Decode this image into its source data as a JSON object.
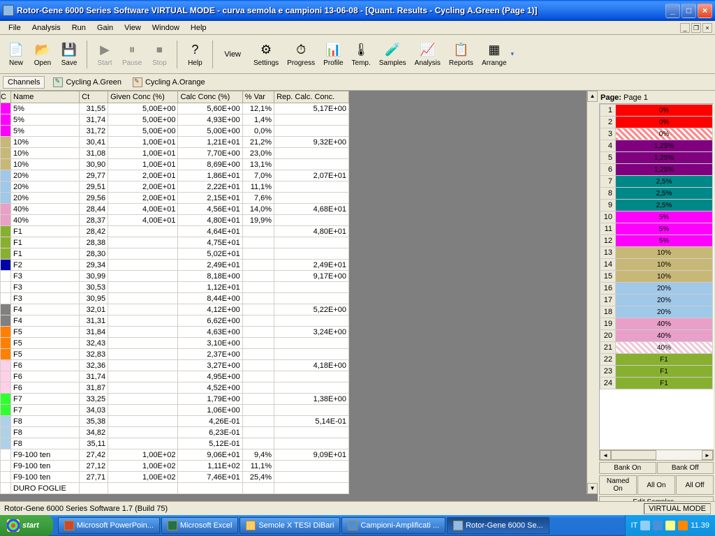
{
  "window": {
    "title": "Rotor-Gene 6000 Series Software VIRTUAL MODE - curva semola e campioni 13-06-08 - [Quant. Results - Cycling A.Green (Page 1)]"
  },
  "menu": {
    "items": [
      "File",
      "Analysis",
      "Run",
      "Gain",
      "View",
      "Window",
      "Help"
    ]
  },
  "toolbar1": [
    {
      "label": "New",
      "glyph": "📄",
      "enabled": true
    },
    {
      "label": "Open",
      "glyph": "📂",
      "enabled": true
    },
    {
      "label": "Save",
      "glyph": "💾",
      "enabled": true
    }
  ],
  "toolbar2": [
    {
      "label": "Start",
      "glyph": "▶",
      "enabled": false
    },
    {
      "label": "Pause",
      "glyph": "⏸",
      "enabled": false
    },
    {
      "label": "Stop",
      "glyph": "⏹",
      "enabled": false
    }
  ],
  "toolbar3": [
    {
      "label": "Help",
      "glyph": "?",
      "enabled": true
    }
  ],
  "viewlabel": "View",
  "toolbar4": [
    {
      "label": "Settings",
      "glyph": "⚙",
      "enabled": true
    },
    {
      "label": "Progress",
      "glyph": "⏱",
      "enabled": true
    },
    {
      "label": "Profile",
      "glyph": "📊",
      "enabled": true
    },
    {
      "label": "Temp.",
      "glyph": "🌡",
      "enabled": true
    },
    {
      "label": "Samples",
      "glyph": "🧪",
      "enabled": true
    },
    {
      "label": "Analysis",
      "glyph": "📈",
      "enabled": true
    },
    {
      "label": "Reports",
      "glyph": "📋",
      "enabled": true
    },
    {
      "label": "Arrange",
      "glyph": "▦",
      "enabled": true
    }
  ],
  "channels": {
    "label": "Channels",
    "items": [
      "Cycling A.Green",
      "Cycling A.Orange"
    ]
  },
  "table": {
    "headers": [
      "C",
      "Name",
      "Ct",
      "Given Conc (%)",
      "Calc Conc (%)",
      "% Var",
      "Rep. Calc. Conc."
    ],
    "rows": [
      {
        "color": "#ff00ff",
        "name": "5%",
        "ct": "31,55",
        "given": "5,00E+00",
        "calc": "5,60E+00",
        "var": "12,1%",
        "rep": "5,17E+00"
      },
      {
        "color": "#ff00ff",
        "name": "5%",
        "ct": "31,74",
        "given": "5,00E+00",
        "calc": "4,93E+00",
        "var": "1,4%",
        "rep": ""
      },
      {
        "color": "#ff00ff",
        "name": "5%",
        "ct": "31,72",
        "given": "5,00E+00",
        "calc": "5,00E+00",
        "var": "0,0%",
        "rep": ""
      },
      {
        "color": "#c8b878",
        "name": "10%",
        "ct": "30,41",
        "given": "1,00E+01",
        "calc": "1,21E+01",
        "var": "21,2%",
        "rep": "9,32E+00"
      },
      {
        "color": "#c8b878",
        "name": "10%",
        "ct": "31,08",
        "given": "1,00E+01",
        "calc": "7,70E+00",
        "var": "23,0%",
        "rep": ""
      },
      {
        "color": "#c8b878",
        "name": "10%",
        "ct": "30,90",
        "given": "1,00E+01",
        "calc": "8,69E+00",
        "var": "13,1%",
        "rep": ""
      },
      {
        "color": "#a0c8e8",
        "name": "20%",
        "ct": "29,77",
        "given": "2,00E+01",
        "calc": "1,86E+01",
        "var": "7,0%",
        "rep": "2,07E+01"
      },
      {
        "color": "#a0c8e8",
        "name": "20%",
        "ct": "29,51",
        "given": "2,00E+01",
        "calc": "2,22E+01",
        "var": "11,1%",
        "rep": ""
      },
      {
        "color": "#a0c8e8",
        "name": "20%",
        "ct": "29,56",
        "given": "2,00E+01",
        "calc": "2,15E+01",
        "var": "7,6%",
        "rep": ""
      },
      {
        "color": "#e8a0c8",
        "name": "40%",
        "ct": "28,44",
        "given": "4,00E+01",
        "calc": "4,56E+01",
        "var": "14,0%",
        "rep": "4,68E+01"
      },
      {
        "color": "#e8a0c8",
        "name": "40%",
        "ct": "28,37",
        "given": "4,00E+01",
        "calc": "4,80E+01",
        "var": "19,9%",
        "rep": ""
      },
      {
        "color": "#88b030",
        "name": "F1",
        "ct": "28,42",
        "given": "",
        "calc": "4,64E+01",
        "var": "",
        "rep": "4,80E+01"
      },
      {
        "color": "#88b030",
        "name": "F1",
        "ct": "28,38",
        "given": "",
        "calc": "4,75E+01",
        "var": "",
        "rep": ""
      },
      {
        "color": "#88b030",
        "name": "F1",
        "ct": "28,30",
        "given": "",
        "calc": "5,02E+01",
        "var": "",
        "rep": ""
      },
      {
        "color": "#0000a8",
        "name": "F2",
        "ct": "29,34",
        "given": "",
        "calc": "2,49E+01",
        "var": "",
        "rep": "2,49E+01"
      },
      {
        "color": "#ffffff",
        "name": "F3",
        "ct": "30,99",
        "given": "",
        "calc": "8,18E+00",
        "var": "",
        "rep": "9,17E+00"
      },
      {
        "color": "#ffffff",
        "name": "F3",
        "ct": "30,53",
        "given": "",
        "calc": "1,12E+01",
        "var": "",
        "rep": ""
      },
      {
        "color": "#ffffff",
        "name": "F3",
        "ct": "30,95",
        "given": "",
        "calc": "8,44E+00",
        "var": "",
        "rep": ""
      },
      {
        "color": "#808080",
        "name": "F4",
        "ct": "32,01",
        "given": "",
        "calc": "4,12E+00",
        "var": "",
        "rep": "5,22E+00"
      },
      {
        "color": "#808080",
        "name": "F4",
        "ct": "31,31",
        "given": "",
        "calc": "6,62E+00",
        "var": "",
        "rep": ""
      },
      {
        "color": "#ff8000",
        "name": "F5",
        "ct": "31,84",
        "given": "",
        "calc": "4,63E+00",
        "var": "",
        "rep": "3,24E+00"
      },
      {
        "color": "#ff8000",
        "name": "F5",
        "ct": "32,43",
        "given": "",
        "calc": "3,10E+00",
        "var": "",
        "rep": ""
      },
      {
        "color": "#ff8000",
        "name": "F5",
        "ct": "32,83",
        "given": "",
        "calc": "2,37E+00",
        "var": "",
        "rep": ""
      },
      {
        "color": "#ffd0e8",
        "name": "F6",
        "ct": "32,36",
        "given": "",
        "calc": "3,27E+00",
        "var": "",
        "rep": "4,18E+00"
      },
      {
        "color": "#ffd0e8",
        "name": "F6",
        "ct": "31,74",
        "given": "",
        "calc": "4,95E+00",
        "var": "",
        "rep": ""
      },
      {
        "color": "#ffd0e8",
        "name": "F6",
        "ct": "31,87",
        "given": "",
        "calc": "4,52E+00",
        "var": "",
        "rep": ""
      },
      {
        "color": "#30ff30",
        "name": "F7",
        "ct": "33,25",
        "given": "",
        "calc": "1,79E+00",
        "var": "",
        "rep": "1,38E+00"
      },
      {
        "color": "#30ff30",
        "name": "F7",
        "ct": "34,03",
        "given": "",
        "calc": "1,06E+00",
        "var": "",
        "rep": ""
      },
      {
        "color": "#b0d0e8",
        "name": "F8",
        "ct": "35,38",
        "given": "",
        "calc": "4,26E-01",
        "var": "",
        "rep": "5,14E-01"
      },
      {
        "color": "#b0d0e8",
        "name": "F8",
        "ct": "34,82",
        "given": "",
        "calc": "6,23E-01",
        "var": "",
        "rep": ""
      },
      {
        "color": "#b0d0e8",
        "name": "F8",
        "ct": "35,11",
        "given": "",
        "calc": "5,12E-01",
        "var": "",
        "rep": ""
      },
      {
        "color": "#ffffff",
        "name": "F9-100 ten",
        "ct": "27,42",
        "given": "1,00E+02",
        "calc": "9,06E+01",
        "var": "9,4%",
        "rep": "9,09E+01"
      },
      {
        "color": "#ffffff",
        "name": "F9-100 ten",
        "ct": "27,12",
        "given": "1,00E+02",
        "calc": "1,11E+02",
        "var": "11,1%",
        "rep": ""
      },
      {
        "color": "#ffffff",
        "name": "F9-100 ten",
        "ct": "27,71",
        "given": "1,00E+02",
        "calc": "7,46E+01",
        "var": "25,4%",
        "rep": ""
      },
      {
        "color": "#ffffff",
        "name": "DURO FOGLIE",
        "ct": "",
        "given": "",
        "calc": "",
        "var": "",
        "rep": ""
      }
    ]
  },
  "rightpanel": {
    "pagelabel": "Page:",
    "pagevalue": "Page 1",
    "legend": [
      {
        "n": 1,
        "color": "#ff0000",
        "label": "0%"
      },
      {
        "n": 2,
        "color": "#ff0000",
        "label": "0%"
      },
      {
        "n": 3,
        "color": "#ff8888",
        "label": "0%",
        "hatch": true
      },
      {
        "n": 4,
        "color": "#800080",
        "label": "1,25%"
      },
      {
        "n": 5,
        "color": "#800080",
        "label": "1,25%"
      },
      {
        "n": 6,
        "color": "#800080",
        "label": "1,25%"
      },
      {
        "n": 7,
        "color": "#008888",
        "label": "2,5%"
      },
      {
        "n": 8,
        "color": "#008888",
        "label": "2,5%"
      },
      {
        "n": 9,
        "color": "#008888",
        "label": "2,5%"
      },
      {
        "n": 10,
        "color": "#ff00ff",
        "label": "5%"
      },
      {
        "n": 11,
        "color": "#ff00ff",
        "label": "5%"
      },
      {
        "n": 12,
        "color": "#ff00ff",
        "label": "5%"
      },
      {
        "n": 13,
        "color": "#c8b878",
        "label": "10%"
      },
      {
        "n": 14,
        "color": "#c8b878",
        "label": "10%"
      },
      {
        "n": 15,
        "color": "#c8b878",
        "label": "10%"
      },
      {
        "n": 16,
        "color": "#a0c8e8",
        "label": "20%"
      },
      {
        "n": 17,
        "color": "#a0c8e8",
        "label": "20%"
      },
      {
        "n": 18,
        "color": "#a0c8e8",
        "label": "20%"
      },
      {
        "n": 19,
        "color": "#e8a0c8",
        "label": "40%"
      },
      {
        "n": 20,
        "color": "#e8a0c8",
        "label": "40%"
      },
      {
        "n": 21,
        "color": "#f0c8d8",
        "label": "40%",
        "hatch": true
      },
      {
        "n": 22,
        "color": "#88b030",
        "label": "F1"
      },
      {
        "n": 23,
        "color": "#88b030",
        "label": "F1"
      },
      {
        "n": 24,
        "color": "#88b030",
        "label": "F1"
      }
    ],
    "buttons1": [
      "Bank On",
      "Bank Off"
    ],
    "buttons2": [
      "Named On",
      "All On",
      "All Off"
    ],
    "editbtn": "Edit Samples..."
  },
  "statusbar": {
    "text": "Rotor-Gene 6000 Series Software 1.7 (Build 75)",
    "mode": "VIRTUAL MODE"
  },
  "taskbar": {
    "start": "start",
    "items": [
      {
        "label": "Microsoft PowerPoin...",
        "active": false,
        "ico": "#d24726"
      },
      {
        "label": "Microsoft Excel",
        "active": false,
        "ico": "#217346"
      },
      {
        "label": "Semole X TESI DiBari",
        "active": false,
        "ico": "#fc6"
      },
      {
        "label": "Campioni-Amplificati ...",
        "active": false,
        "ico": "#4a90d9"
      },
      {
        "label": "Rotor-Gene 6000 Se...",
        "active": true,
        "ico": "#8fbde8"
      }
    ],
    "lang": "IT",
    "time": "11.39"
  }
}
